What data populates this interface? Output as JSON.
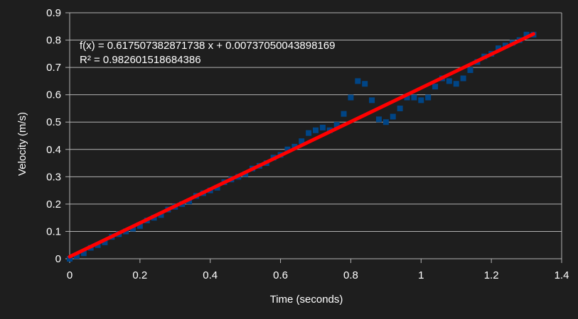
{
  "chart_data": {
    "type": "scatter",
    "title": "",
    "xlabel": "Time (seconds)",
    "ylabel": "Velocity (m/s)",
    "xlim": [
      0,
      1.4
    ],
    "ylim": [
      0,
      0.9
    ],
    "xticks": [
      "0",
      "0.2",
      "0.4",
      "0.6",
      "0.8",
      "1",
      "1.2",
      "1.4"
    ],
    "yticks": [
      "0",
      "0.1",
      "0.2",
      "0.3",
      "0.4",
      "0.5",
      "0.6",
      "0.7",
      "0.8",
      "0.9"
    ],
    "grid": true,
    "legend": "none",
    "series": [
      {
        "color": "#004586",
        "marker": "square",
        "x": [
          0,
          0.02,
          0.04,
          0.06,
          0.08,
          0.1,
          0.12,
          0.14,
          0.16,
          0.18,
          0.2,
          0.22,
          0.24,
          0.26,
          0.28,
          0.3,
          0.32,
          0.34,
          0.36,
          0.38,
          0.4,
          0.42,
          0.44,
          0.46,
          0.48,
          0.5,
          0.52,
          0.54,
          0.56,
          0.58,
          0.6,
          0.62,
          0.64,
          0.66,
          0.68,
          0.7,
          0.72,
          0.74,
          0.76,
          0.78,
          0.8,
          0.82,
          0.84,
          0.86,
          0.88,
          0.9,
          0.92,
          0.94,
          0.96,
          0.98,
          1.0,
          1.02,
          1.04,
          1.06,
          1.08,
          1.1,
          1.12,
          1.14,
          1.16,
          1.18,
          1.2,
          1.22,
          1.24,
          1.26,
          1.28,
          1.3,
          1.32
        ],
        "y": [
          0.0,
          0.01,
          0.02,
          0.04,
          0.05,
          0.06,
          0.08,
          0.09,
          0.1,
          0.11,
          0.12,
          0.14,
          0.15,
          0.16,
          0.18,
          0.19,
          0.2,
          0.21,
          0.23,
          0.24,
          0.25,
          0.26,
          0.28,
          0.29,
          0.3,
          0.31,
          0.33,
          0.34,
          0.35,
          0.37,
          0.38,
          0.4,
          0.41,
          0.43,
          0.46,
          0.47,
          0.48,
          0.47,
          0.49,
          0.53,
          0.59,
          0.65,
          0.64,
          0.58,
          0.51,
          0.5,
          0.52,
          0.55,
          0.59,
          0.59,
          0.58,
          0.59,
          0.63,
          0.66,
          0.65,
          0.64,
          0.66,
          0.69,
          0.72,
          0.74,
          0.75,
          0.77,
          0.78,
          0.79,
          0.8,
          0.82,
          0.82
        ]
      }
    ],
    "trendline": {
      "color": "#ff0000",
      "slope": 0.617507382871738,
      "intercept": 0.00737050043898169,
      "x_range": [
        0,
        1.32
      ]
    },
    "annotations": [
      "f(x) = 0.617507382871738 x + 0.00737050043898169",
      "R² = 0.982601518684386"
    ]
  }
}
